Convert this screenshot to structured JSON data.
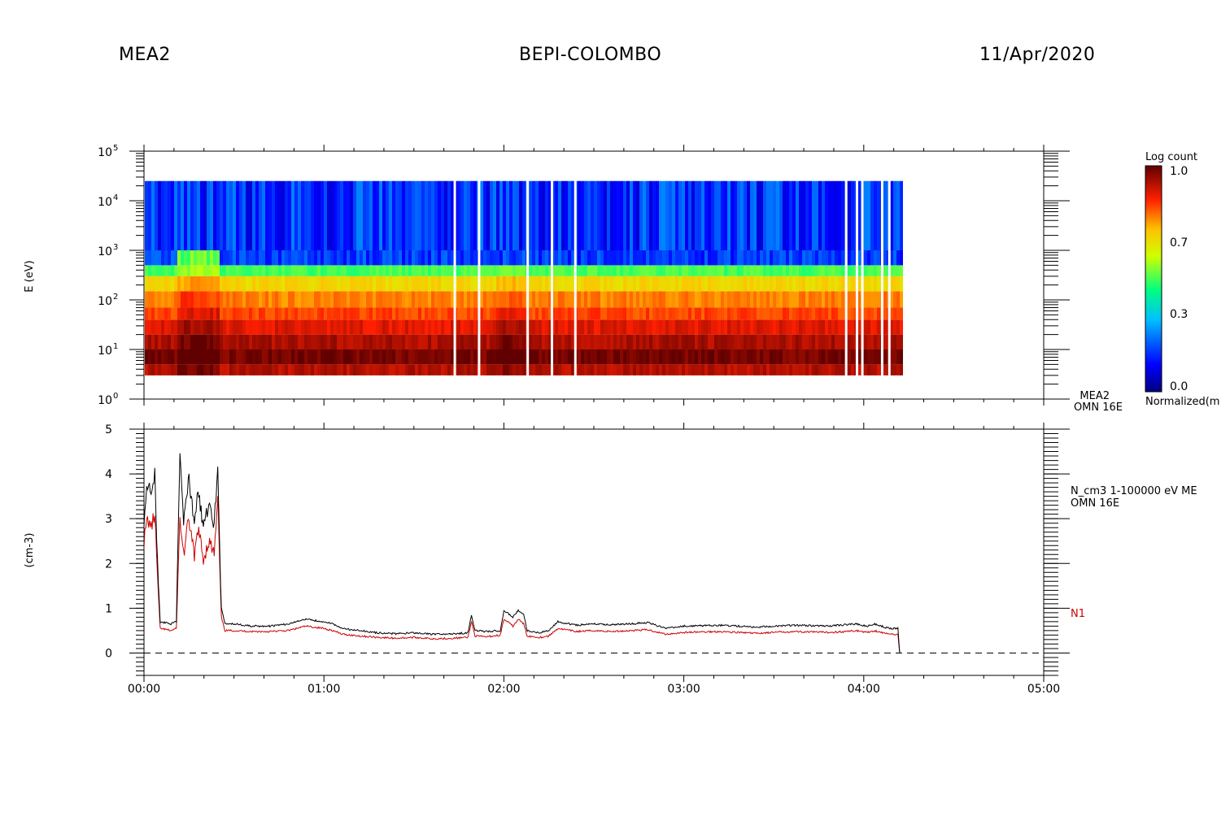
{
  "header": {
    "left": "MEA2",
    "center": "BEPI-COLOMBO",
    "right": "11/Apr/2020"
  },
  "chart_data": [
    {
      "type": "heatmap",
      "ylabel": "E (eV)",
      "y_scale": "log",
      "ylim": [
        1,
        100000
      ],
      "y_ticks": [
        {
          "exp": 0,
          "base": "10",
          "sup": "0"
        },
        {
          "exp": 1,
          "base": "10",
          "sup": "1"
        },
        {
          "exp": 2,
          "base": "10",
          "sup": "2"
        },
        {
          "exp": 3,
          "base": "10",
          "sup": "3"
        },
        {
          "exp": 4,
          "base": "10",
          "sup": "4"
        },
        {
          "exp": 5,
          "base": "10",
          "sup": "5"
        }
      ],
      "x_range_hours": [
        0,
        5
      ],
      "data_end_hour": 4.2,
      "data_gaps_hours": [
        1.725,
        1.86,
        2.13,
        2.265,
        2.395,
        3.9,
        3.96,
        3.99,
        4.1,
        4.14
      ],
      "energy_bands": [
        {
          "emin": 3,
          "emax": 5,
          "level": 0.92
        },
        {
          "emin": 5,
          "emax": 10,
          "level": 0.98
        },
        {
          "emin": 10,
          "emax": 20,
          "level": 0.93
        },
        {
          "emin": 20,
          "emax": 40,
          "level": 0.88
        },
        {
          "emin": 40,
          "emax": 70,
          "level": 0.82
        },
        {
          "emin": 70,
          "emax": 150,
          "level": 0.77
        },
        {
          "emin": 150,
          "emax": 300,
          "level": 0.68
        },
        {
          "emin": 300,
          "emax": 500,
          "level": 0.5
        },
        {
          "emin": 500,
          "emax": 1000,
          "level": 0.12
        },
        {
          "emin": 1000,
          "emax": 25000,
          "level": 0.08
        }
      ],
      "colorbar": {
        "title": "Log count",
        "ticks": [
          "1.0",
          "0.7",
          "0.3",
          "0.0"
        ],
        "label": "Normalized(m"
      },
      "side_label": [
        "MEA2",
        "OMN 16E"
      ]
    },
    {
      "type": "line",
      "ylabel": "(cm-3)",
      "ylim": [
        -0.5,
        5
      ],
      "y_ticks": [
        "0",
        "1",
        "2",
        "3",
        "4",
        "5"
      ],
      "x_ticks": [
        "00:00",
        "01:00",
        "02:00",
        "03:00",
        "04:00",
        "05:00"
      ],
      "x_range_hours": [
        0,
        5
      ],
      "series": [
        {
          "name": "N_cm3 1-100000 eV ME",
          "sub": "OMN 16E",
          "color": "#000000",
          "x": [
            0,
            0.02,
            0.04,
            0.06,
            0.075,
            0.09,
            0.15,
            0.18,
            0.2,
            0.22,
            0.25,
            0.28,
            0.3,
            0.33,
            0.36,
            0.39,
            0.41,
            0.43,
            0.45,
            0.5,
            0.6,
            0.7,
            0.8,
            0.9,
            1.0,
            1.05,
            1.1,
            1.2,
            1.3,
            1.4,
            1.5,
            1.6,
            1.72,
            1.8,
            1.82,
            1.84,
            1.9,
            1.98,
            2.0,
            2.02,
            2.05,
            2.08,
            2.11,
            2.13,
            2.2,
            2.25,
            2.3,
            2.4,
            2.5,
            2.6,
            2.7,
            2.8,
            2.9,
            3.0,
            3.2,
            3.4,
            3.6,
            3.8,
            3.9,
            3.96,
            4.02,
            4.06,
            4.1,
            4.14,
            4.19,
            4.2
          ],
          "y": [
            3.0,
            3.8,
            3.5,
            4.0,
            2.0,
            0.7,
            0.65,
            0.7,
            4.5,
            3.0,
            3.9,
            2.8,
            3.7,
            2.8,
            3.3,
            2.9,
            4.2,
            1.0,
            0.65,
            0.65,
            0.6,
            0.6,
            0.65,
            0.75,
            0.7,
            0.65,
            0.55,
            0.5,
            0.45,
            0.43,
            0.45,
            0.42,
            0.43,
            0.45,
            0.85,
            0.5,
            0.48,
            0.5,
            0.95,
            0.9,
            0.8,
            0.95,
            0.85,
            0.5,
            0.45,
            0.5,
            0.7,
            0.62,
            0.65,
            0.63,
            0.65,
            0.68,
            0.55,
            0.6,
            0.62,
            0.58,
            0.62,
            0.6,
            0.63,
            0.65,
            0.6,
            0.65,
            0.6,
            0.55,
            0.55,
            0.0
          ]
        },
        {
          "name": "N1",
          "color": "#cc0000",
          "x": [
            0,
            0.02,
            0.04,
            0.06,
            0.075,
            0.09,
            0.15,
            0.18,
            0.2,
            0.22,
            0.25,
            0.28,
            0.3,
            0.33,
            0.36,
            0.39,
            0.41,
            0.43,
            0.45,
            0.5,
            0.6,
            0.7,
            0.8,
            0.9,
            1.0,
            1.05,
            1.1,
            1.2,
            1.3,
            1.4,
            1.5,
            1.6,
            1.72,
            1.8,
            1.82,
            1.84,
            1.9,
            1.98,
            2.0,
            2.02,
            2.05,
            2.08,
            2.11,
            2.13,
            2.2,
            2.25,
            2.3,
            2.4,
            2.5,
            2.6,
            2.7,
            2.8,
            2.9,
            3.0,
            3.2,
            3.4,
            3.6,
            3.8,
            3.9,
            3.96,
            4.02,
            4.06,
            4.1,
            4.14,
            4.19,
            4.2
          ],
          "y": [
            2.5,
            3.0,
            2.8,
            3.1,
            1.7,
            0.55,
            0.5,
            0.55,
            3.0,
            2.2,
            3.0,
            2.1,
            2.8,
            2.1,
            2.5,
            2.2,
            3.4,
            0.8,
            0.5,
            0.5,
            0.48,
            0.48,
            0.5,
            0.6,
            0.55,
            0.5,
            0.42,
            0.38,
            0.35,
            0.33,
            0.35,
            0.32,
            0.33,
            0.35,
            0.7,
            0.38,
            0.36,
            0.4,
            0.75,
            0.7,
            0.6,
            0.75,
            0.65,
            0.38,
            0.35,
            0.38,
            0.55,
            0.48,
            0.5,
            0.48,
            0.5,
            0.52,
            0.42,
            0.46,
            0.48,
            0.44,
            0.48,
            0.46,
            0.48,
            0.5,
            0.46,
            0.5,
            0.46,
            0.42,
            0.42,
            0.0
          ]
        }
      ]
    }
  ]
}
